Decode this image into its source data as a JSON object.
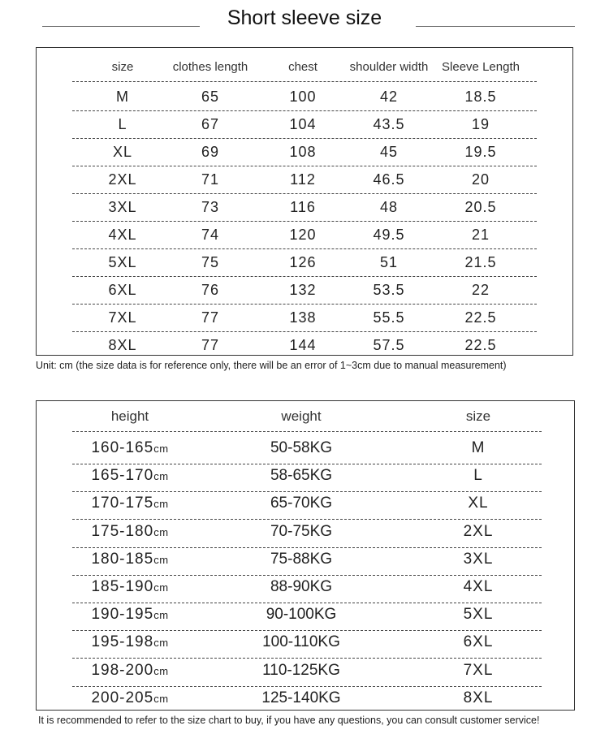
{
  "title": "Short sleeve size",
  "table1": {
    "headers": [
      "size",
      "clothes length",
      "chest",
      "shoulder width",
      "Sleeve Length"
    ],
    "rows": [
      [
        "M",
        "65",
        "100",
        "42",
        "18.5"
      ],
      [
        "L",
        "67",
        "104",
        "43.5",
        "19"
      ],
      [
        "XL",
        "69",
        "108",
        "45",
        "19.5"
      ],
      [
        "2XL",
        "71",
        "112",
        "46.5",
        "20"
      ],
      [
        "3XL",
        "73",
        "116",
        "48",
        "20.5"
      ],
      [
        "4XL",
        "74",
        "120",
        "49.5",
        "21"
      ],
      [
        "5XL",
        "75",
        "126",
        "51",
        "21.5"
      ],
      [
        "6XL",
        "76",
        "132",
        "53.5",
        "22"
      ],
      [
        "7XL",
        "77",
        "138",
        "55.5",
        "22.5"
      ],
      [
        "8XL",
        "77",
        "144",
        "57.5",
        "22.5"
      ]
    ]
  },
  "unit_note": "Unit: cm (the size data is for reference only, there will be an error of 1~3cm due to manual measurement)",
  "table2": {
    "headers": [
      "height",
      "weight",
      "size"
    ],
    "unit": "cm",
    "rows": [
      [
        "160-165",
        "50-58KG",
        "M"
      ],
      [
        "165-170",
        "58-65KG",
        "L"
      ],
      [
        "170-175",
        "65-70KG",
        "XL"
      ],
      [
        "175-180",
        "70-75KG",
        "2XL"
      ],
      [
        "180-185",
        "75-88KG",
        "3XL"
      ],
      [
        "185-190",
        "88-90KG",
        "4XL"
      ],
      [
        "190-195",
        "90-100KG",
        "5XL"
      ],
      [
        "195-198",
        "100-110KG",
        "6XL"
      ],
      [
        "198-200",
        "110-125KG",
        "7XL"
      ],
      [
        "200-205",
        "125-140KG",
        "8XL"
      ]
    ]
  },
  "footer_note": "It is recommended to refer to the size chart to buy, if you have any questions, you can consult customer service!"
}
